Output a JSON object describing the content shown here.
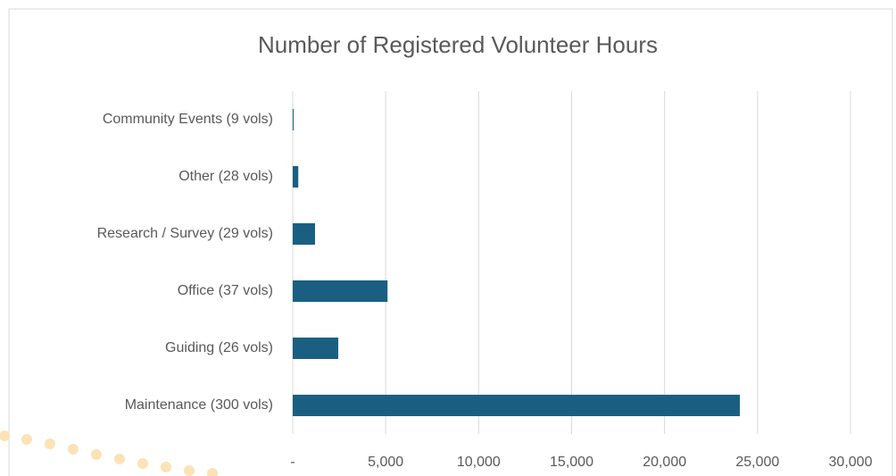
{
  "chart_data": {
    "type": "bar",
    "orientation": "horizontal",
    "title": "Number of Registered Volunteer Hours",
    "categories": [
      "Community Events (9 vols)",
      "Other (28 vols)",
      "Research / Survey (29 vols)",
      "Office (37 vols)",
      "Guiding (26 vols)",
      "Maintenance (300 vols)"
    ],
    "values": [
      50,
      300,
      1200,
      5100,
      2450,
      24050
    ],
    "color": "#1a5f82",
    "xlim": [
      0,
      30000
    ],
    "xticks": [
      {
        "value": 0,
        "label": "-"
      },
      {
        "value": 5000,
        "label": "5,000"
      },
      {
        "value": 10000,
        "label": "10,000"
      },
      {
        "value": 15000,
        "label": "15,000"
      },
      {
        "value": 20000,
        "label": "20,000"
      },
      {
        "value": 25000,
        "label": "25,000"
      },
      {
        "value": 30000,
        "label": "30,000"
      }
    ],
    "grid": true
  }
}
